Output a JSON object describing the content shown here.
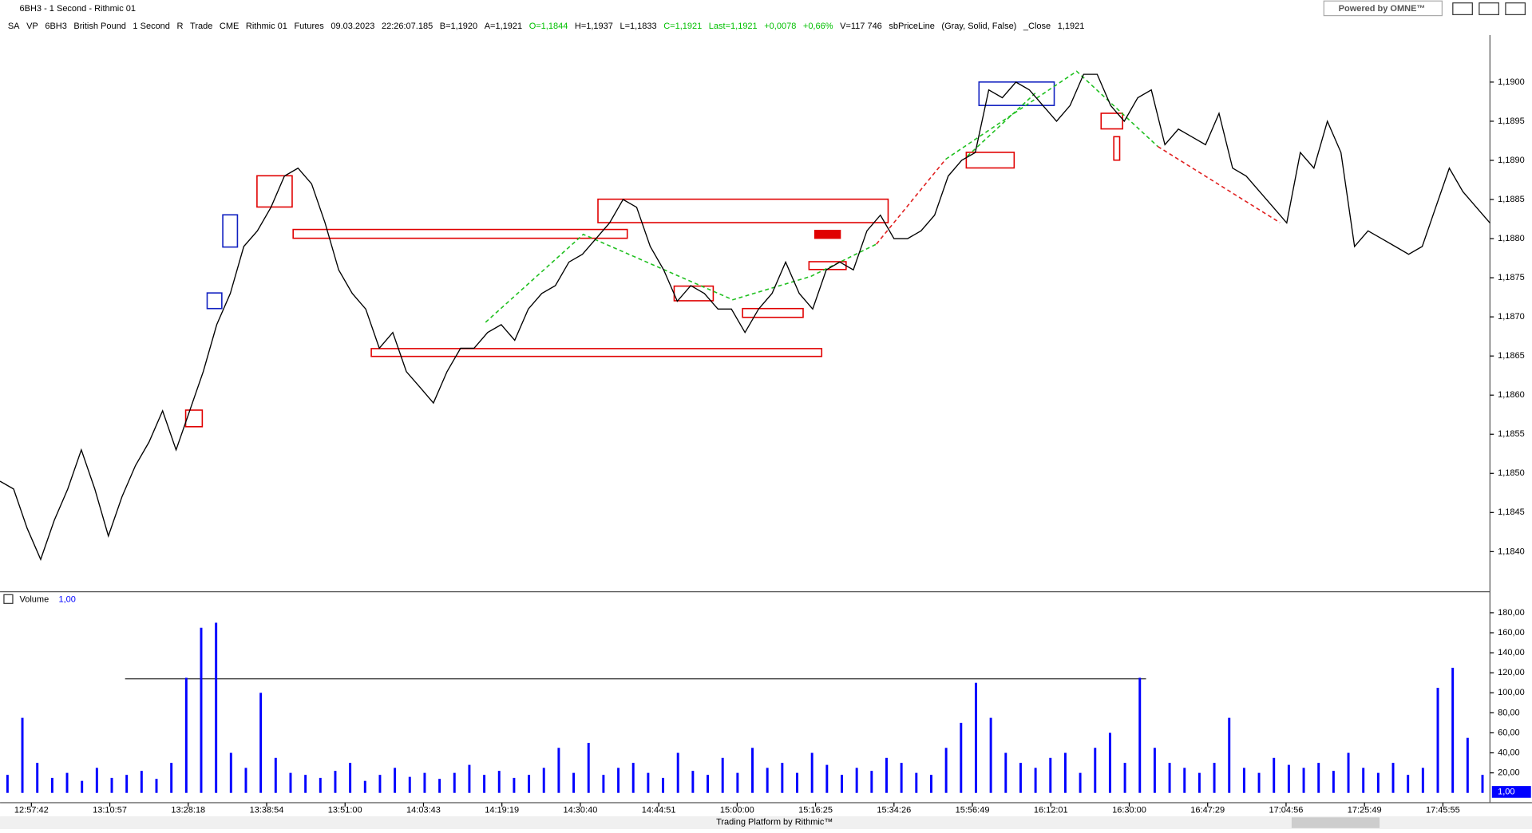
{
  "window": {
    "title": "6BH3 - 1 Second - Rithmic 01",
    "brand": "Powered by OMNE™",
    "footer": "Trading Platform by Rithmic™"
  },
  "toolbar": [
    {
      "text": "SA"
    },
    {
      "text": "VP"
    },
    {
      "text": "6BH3"
    },
    {
      "text": "British Pound"
    },
    {
      "text": "1 Second"
    },
    {
      "text": "R"
    },
    {
      "text": "Trade"
    },
    {
      "text": "CME"
    },
    {
      "text": "Rithmic 01"
    },
    {
      "text": "Futures"
    },
    {
      "text": "09.03.2023"
    },
    {
      "text": "22:26:07.185"
    },
    {
      "text": "B=1,1920"
    },
    {
      "text": "A=1,1921"
    },
    {
      "text": "O=1,1844",
      "color": "#00c000"
    },
    {
      "text": "H=1,1937"
    },
    {
      "text": "L=1,1833"
    },
    {
      "text": "C=1,1921",
      "color": "#00c000"
    },
    {
      "text": "Last=1,1921",
      "color": "#00c000"
    },
    {
      "text": "+0,0078",
      "color": "#00c000"
    },
    {
      "text": "+0,66%",
      "color": "#00c000"
    },
    {
      "text": "V=117 746"
    },
    {
      "text": "sbPriceLine"
    },
    {
      "text": "(Gray, Solid, False)"
    },
    {
      "text": "_Close"
    },
    {
      "text": "1,1921"
    }
  ],
  "chart_data": [
    {
      "type": "line",
      "color": "#000000",
      "values": [
        1.1849,
        1.1848,
        1.1843,
        1.1839,
        1.1844,
        1.1848,
        1.1853,
        1.1848,
        1.1842,
        1.1847,
        1.1851,
        1.1854,
        1.1858,
        1.1853,
        1.1858,
        1.1863,
        1.1869,
        1.1873,
        1.1879,
        1.1881,
        1.1884,
        1.1888,
        1.1889,
        1.1887,
        1.1882,
        1.1876,
        1.1873,
        1.1871,
        1.1866,
        1.1868,
        1.1863,
        1.1861,
        1.1859,
        1.1863,
        1.1866,
        1.1866,
        1.1868,
        1.1869,
        1.1867,
        1.1871,
        1.1873,
        1.1874,
        1.1877,
        1.1878,
        1.188,
        1.1882,
        1.1885,
        1.1884,
        1.1879,
        1.1876,
        1.1872,
        1.1874,
        1.1873,
        1.1871,
        1.1871,
        1.1868,
        1.1871,
        1.1873,
        1.1877,
        1.1873,
        1.1871,
        1.1876,
        1.1877,
        1.1876,
        1.1881,
        1.1883,
        1.188,
        1.188,
        1.1881,
        1.1883,
        1.1888,
        1.189,
        1.1891,
        1.1899,
        1.1898,
        1.19,
        1.1899,
        1.1897,
        1.1895,
        1.1897,
        1.1901,
        1.1901,
        1.1897,
        1.1895,
        1.1898,
        1.1899,
        1.1892,
        1.1894,
        1.1893,
        1.1892,
        1.1896,
        1.1889,
        1.1888,
        1.1886,
        1.1884,
        1.1882,
        1.1891,
        1.1889,
        1.1895,
        1.1891,
        1.1879,
        1.1881,
        1.188,
        1.1879,
        1.1878,
        1.1879,
        1.1884,
        1.1889,
        1.1886,
        1.1884,
        1.1882
      ],
      "ylim": [
        1.1835,
        1.1906
      ],
      "yticks": [
        {
          "value": 1.184,
          "label": "1,1840"
        },
        {
          "value": 1.1845,
          "label": "1,1845"
        },
        {
          "value": 1.185,
          "label": "1,1850"
        },
        {
          "value": 1.1855,
          "label": "1,1855"
        },
        {
          "value": 1.186,
          "label": "1,1860"
        },
        {
          "value": 1.1865,
          "label": "1,1865"
        },
        {
          "value": 1.187,
          "label": "1,1870"
        },
        {
          "value": 1.1875,
          "label": "1,1875"
        },
        {
          "value": 1.188,
          "label": "1,1880"
        },
        {
          "value": 1.1885,
          "label": "1,1885"
        },
        {
          "value": 1.189,
          "label": "1,1890"
        },
        {
          "value": 1.1895,
          "label": "1,1895"
        },
        {
          "value": 1.19,
          "label": "1,1900"
        }
      ],
      "xticks": [
        "12:57:42",
        "13:10:57",
        "13:28:18",
        "13:38:54",
        "13:51:00",
        "14:03:43",
        "14:19:19",
        "14:30:40",
        "14:44:51",
        "15:00:00",
        "15:16:25",
        "15:34:26",
        "15:56:49",
        "16:12:01",
        "16:30:00",
        "16:47:29",
        "17:04:56",
        "17:25:49",
        "17:45:55"
      ]
    },
    {
      "type": "bar",
      "name": "Volume",
      "color": "#0000ff",
      "values": [
        18,
        75,
        30,
        15,
        20,
        12,
        25,
        15,
        18,
        22,
        14,
        30,
        115,
        165,
        170,
        40,
        25,
        100,
        35,
        20,
        18,
        15,
        22,
        30,
        12,
        18,
        25,
        16,
        20,
        14,
        20,
        28,
        18,
        22,
        15,
        18,
        25,
        45,
        20,
        50,
        18,
        25,
        30,
        20,
        15,
        40,
        22,
        18,
        35,
        20,
        45,
        25,
        30,
        20,
        40,
        28,
        18,
        25,
        22,
        35,
        30,
        20,
        18,
        45,
        70,
        110,
        75,
        40,
        30,
        25,
        35,
        40,
        20,
        45,
        60,
        30,
        115,
        45,
        30,
        25,
        20,
        30,
        75,
        25,
        20,
        35,
        28,
        25,
        30,
        22,
        40,
        25,
        20,
        30,
        18,
        25,
        105,
        125,
        55,
        18
      ],
      "ylim": [
        0,
        200
      ],
      "yticks": [
        {
          "value": 20,
          "label": "20,00"
        },
        {
          "value": 40,
          "label": "40,00"
        },
        {
          "value": 60,
          "label": "60,00"
        },
        {
          "value": 80,
          "label": "80,00"
        },
        {
          "value": 100,
          "label": "100,00"
        },
        {
          "value": 120,
          "label": "120,00"
        },
        {
          "value": 140,
          "label": "140,00"
        },
        {
          "value": 160,
          "label": "160,00"
        },
        {
          "value": 180,
          "label": "180,00"
        }
      ],
      "last_value": {
        "value": 1,
        "label": "1,00"
      },
      "hline": 114
    }
  ]
}
